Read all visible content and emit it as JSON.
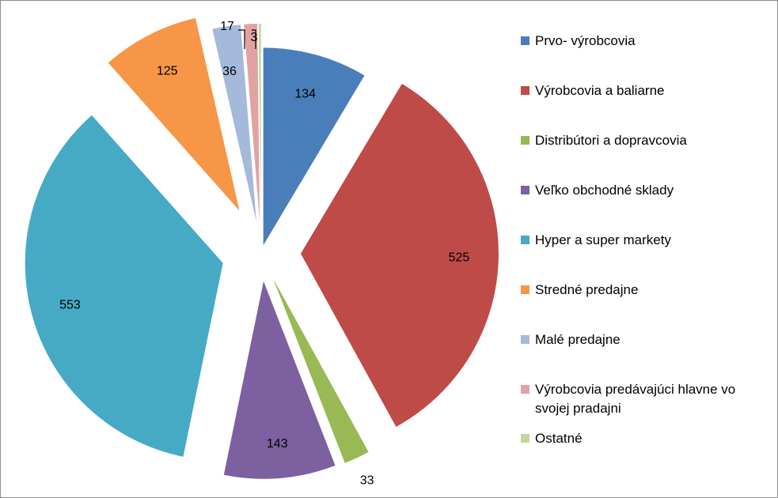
{
  "chart_data": {
    "type": "pie",
    "exploded": true,
    "title": "",
    "legend_position": "right",
    "categories": [
      "Prvo- výrobcovia",
      "Výrobcovia a baliarne",
      "Distribútori a dopravcovia",
      "Veľko obchodné sklady",
      "Hyper a super markety",
      "Stredné predajne",
      "Malé predajne",
      "Výrobcovia predávajúci hlavne vo svojej pradajni",
      "Ostatné"
    ],
    "values": [
      134,
      525,
      33,
      143,
      553,
      125,
      36,
      17,
      3
    ],
    "colors": [
      "#4a7ebb",
      "#be4b48",
      "#98b954",
      "#7d60a0",
      "#46aac5",
      "#f79646",
      "#a5b9db",
      "#e0a3a2",
      "#c3d79b"
    ]
  }
}
